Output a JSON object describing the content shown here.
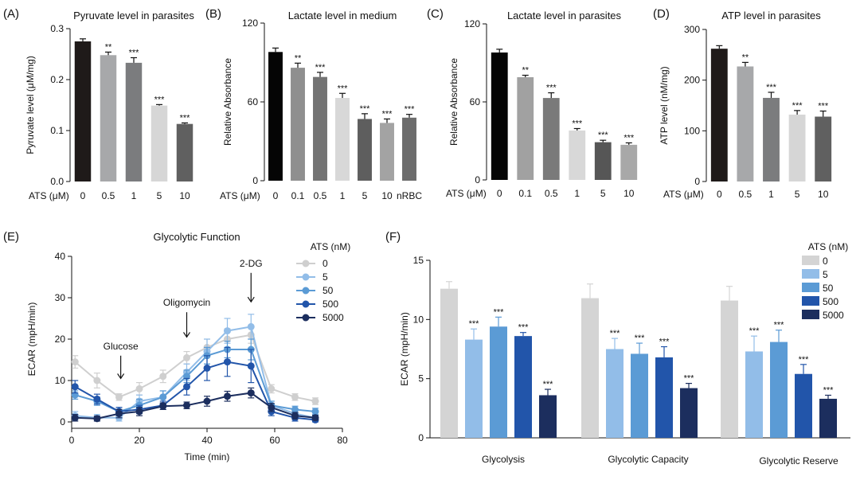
{
  "chart_data": [
    {
      "type": "bar",
      "panel_label": "(A)",
      "title": "Pyruvate level in parasites",
      "ylabel": "Pyruvate level (μM/mg)",
      "xlabel": "ATS (μM)",
      "ylim": [
        0,
        0.3
      ],
      "yticks": [
        0.0,
        0.1,
        0.2,
        0.3
      ],
      "ytick_labels": [
        "0.0",
        "0.1",
        "0.2",
        "0.3"
      ],
      "categories": [
        "0",
        "0.5",
        "1",
        "5",
        "10"
      ],
      "values": [
        0.275,
        0.248,
        0.233,
        0.149,
        0.113
      ],
      "errors": [
        0.005,
        0.006,
        0.01,
        0.002,
        0.002
      ],
      "significance": [
        "",
        "**",
        "***",
        "***",
        "***"
      ],
      "colors": [
        "#1f1a19",
        "#a7a8aa",
        "#7b7c7e",
        "#d6d6d6",
        "#606060"
      ]
    },
    {
      "type": "bar",
      "panel_label": "(B)",
      "title": "Lactate level in medium",
      "ylabel": "Relative Absorbance",
      "xlabel": "ATS (μM)",
      "ylim": [
        0,
        120
      ],
      "yticks": [
        0,
        60,
        120
      ],
      "ytick_labels": [
        "0",
        "60",
        "120"
      ],
      "categories": [
        "0",
        "0.1",
        "0.5",
        "1",
        "5",
        "10",
        "nRBC"
      ],
      "values": [
        98,
        86,
        79,
        63,
        47,
        44,
        48
      ],
      "errors": [
        3,
        3.5,
        3.5,
        3.5,
        4,
        3,
        2.5
      ],
      "significance": [
        "",
        "**",
        "***",
        "***",
        "***",
        "***",
        "***"
      ],
      "colors": [
        "#050505",
        "#8f8f8f",
        "#737373",
        "#d8d8d8",
        "#5e5e5e",
        "#a3a3a3",
        "#6c6c6c"
      ]
    },
    {
      "type": "bar",
      "panel_label": "(C)",
      "title": "Lactate level in parasites",
      "ylabel": "Relative Absorbance",
      "xlabel": "ATS (μM)",
      "ylim": [
        0,
        120
      ],
      "yticks": [
        0,
        60,
        120
      ],
      "ytick_labels": [
        "0",
        "60",
        "120"
      ],
      "categories": [
        "0",
        "0.1",
        "0.5",
        "1",
        "5",
        "10"
      ],
      "values": [
        98,
        79,
        63,
        38,
        29,
        27
      ],
      "errors": [
        2.5,
        1.5,
        4,
        1.5,
        1.5,
        1.5
      ],
      "significance": [
        "",
        "**",
        "***",
        "***",
        "***",
        "***"
      ],
      "colors": [
        "#050505",
        "#a1a1a1",
        "#7a7a7a",
        "#d8d8d8",
        "#565656",
        "#a8a8a8"
      ]
    },
    {
      "type": "bar",
      "panel_label": "(D)",
      "title": "ATP level in parasites",
      "ylabel": "ATP level (nM/mg)",
      "xlabel": "ATS (μM)",
      "ylim": [
        0,
        300
      ],
      "yticks": [
        0,
        100,
        200,
        300
      ],
      "ytick_labels": [
        "0",
        "100",
        "200",
        "300"
      ],
      "categories": [
        "0",
        "0.5",
        "1",
        "5",
        "10"
      ],
      "values": [
        262,
        227,
        165,
        132,
        128
      ],
      "errors": [
        6,
        8,
        11,
        8,
        11
      ],
      "significance": [
        "",
        "**",
        "***",
        "***",
        "***"
      ],
      "colors": [
        "#1f1a19",
        "#a7a8aa",
        "#7b7c7e",
        "#d6d6d6",
        "#606060"
      ]
    },
    {
      "type": "line",
      "panel_label": "(E)",
      "title": "Glycolytic Function",
      "ylabel": "ECAR (mpH/min)",
      "xlabel": "Time (min)",
      "xlim": [
        0,
        80
      ],
      "ylim": [
        0,
        40
      ],
      "xticks": [
        0,
        20,
        40,
        60,
        80
      ],
      "xtick_labels": [
        "0",
        "20",
        "40",
        "60",
        "80"
      ],
      "yticks": [
        0,
        10,
        20,
        30,
        40
      ],
      "ytick_labels": [
        "0",
        "10",
        "20",
        "30",
        "40"
      ],
      "legend_title": "ATS (nM)",
      "legend_position": "top-right",
      "x": [
        1,
        7.5,
        14,
        20,
        27,
        34,
        40,
        46,
        53,
        59,
        66,
        72
      ],
      "series": [
        {
          "name": "0",
          "color": "#cfcfcf",
          "values": [
            14.5,
            10,
            6,
            8,
            11,
            15.5,
            18,
            20,
            21,
            8,
            6,
            5
          ],
          "errors": [
            1.5,
            1.8,
            0.8,
            1.5,
            1.5,
            1.5,
            2,
            2.5,
            2,
            1,
            0.8,
            0.8
          ]
        },
        {
          "name": "5",
          "color": "#92bde8",
          "values": [
            1.5,
            1,
            1,
            5,
            6,
            12,
            17,
            22,
            23,
            4,
            2,
            1
          ],
          "errors": [
            1,
            0.8,
            0.8,
            1.5,
            1.5,
            2,
            3,
            3,
            3,
            1,
            0.8,
            0.8
          ]
        },
        {
          "name": "50",
          "color": "#5b9bd5",
          "values": [
            6.5,
            5,
            2.5,
            4,
            6,
            11,
            16,
            17.5,
            17.5,
            4,
            3,
            2.5
          ],
          "errors": [
            1,
            1,
            1,
            1.5,
            1.5,
            1.5,
            2,
            2,
            2.5,
            1,
            0.8,
            0.8
          ]
        },
        {
          "name": "500",
          "color": "#2255aa",
          "values": [
            8.5,
            5.5,
            2.5,
            3,
            4,
            8.5,
            13,
            14.5,
            13.5,
            2.5,
            1,
            0.5
          ],
          "errors": [
            1.5,
            1.2,
            1,
            1,
            1,
            2,
            3,
            3.5,
            4,
            1,
            0.8,
            0.5
          ]
        },
        {
          "name": "5000",
          "color": "#1c2e5e",
          "values": [
            1,
            0.8,
            2,
            2.5,
            3.8,
            4,
            5,
            6.2,
            7,
            3.5,
            1.5,
            1
          ],
          "errors": [
            0.8,
            0.6,
            1,
            1,
            0.8,
            0.8,
            1.2,
            1.2,
            1.2,
            1,
            0.8,
            0.6
          ]
        }
      ],
      "annotations": [
        {
          "text": "Glucose",
          "x": 14.5,
          "y_from": 16,
          "y_to": 10.5
        },
        {
          "text": "Oligomycin",
          "x": 34,
          "y_from": 26.5,
          "y_to": 20.5
        },
        {
          "text": "2-DG",
          "x": 53,
          "y_from": 36,
          "y_to": 29
        }
      ]
    },
    {
      "type": "bar",
      "panel_label": "(F)",
      "ylabel": "ECAR (mpH/min)",
      "ylim": [
        0,
        15
      ],
      "yticks": [
        0,
        5,
        10,
        15
      ],
      "ytick_labels": [
        "0",
        "5",
        "10",
        "15"
      ],
      "legend_title": "ATS (nM)",
      "legend_position": "top-right",
      "categories": [
        "Glycolysis",
        "Glycolytic Capacity",
        "Glycolytic Reserve"
      ],
      "series": [
        {
          "name": "0",
          "color": "#d4d4d4",
          "values": [
            12.6,
            11.8,
            11.6
          ],
          "errors": [
            0.6,
            1.2,
            1.2
          ],
          "significance": [
            "",
            "",
            ""
          ]
        },
        {
          "name": "5",
          "color": "#92bde8",
          "values": [
            8.3,
            7.5,
            7.3
          ],
          "errors": [
            0.9,
            0.9,
            1.3
          ],
          "significance": [
            "***",
            "***",
            "***"
          ]
        },
        {
          "name": "50",
          "color": "#5b9bd5",
          "values": [
            9.4,
            7.1,
            8.1
          ],
          "errors": [
            0.8,
            0.9,
            1.0
          ],
          "significance": [
            "***",
            "***",
            "***"
          ]
        },
        {
          "name": "500",
          "color": "#2255aa",
          "values": [
            8.6,
            6.8,
            5.4
          ],
          "errors": [
            0.3,
            0.9,
            0.8
          ],
          "significance": [
            "***",
            "***",
            "***"
          ]
        },
        {
          "name": "5000",
          "color": "#1c2e5e",
          "values": [
            3.6,
            4.2,
            3.3
          ],
          "errors": [
            0.5,
            0.4,
            0.3
          ],
          "significance": [
            "***",
            "***",
            "***"
          ]
        }
      ]
    }
  ]
}
